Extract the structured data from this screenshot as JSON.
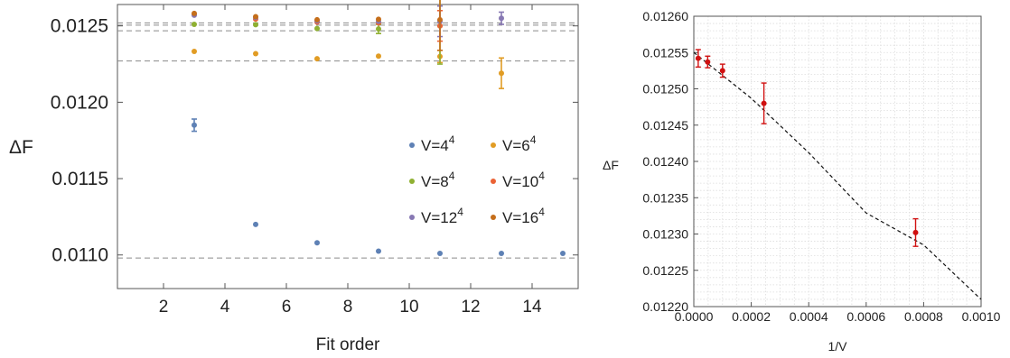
{
  "chart_data": [
    {
      "type": "scatter",
      "xlabel": "Fit order",
      "ylabel": "ΔF",
      "xlim": [
        0.5,
        15.5
      ],
      "ylim": [
        0.01078,
        0.01264
      ],
      "xticks": [
        "2",
        "4",
        "6",
        "8",
        "10",
        "12",
        "14"
      ],
      "yticks": [
        "0.0110",
        "0.0115",
        "0.0120",
        "0.0125"
      ],
      "grid": false,
      "legend_position": "right",
      "reference_lines": [
        0.01098,
        0.01227,
        0.012468,
        0.012505,
        0.01252
      ],
      "series": [
        {
          "name": "V=4",
          "exponent": "4",
          "color": "#5e81b5",
          "x": [
            3,
            5,
            7,
            9,
            11,
            13,
            15
          ],
          "y": [
            0.01185,
            0.0112,
            0.01108,
            0.011025,
            0.01101,
            0.01101,
            0.01101
          ],
          "err": [
            4e-05,
            1e-05,
            1e-05,
            1e-05,
            1e-05,
            1e-05,
            1e-05
          ]
        },
        {
          "name": "V=6",
          "exponent": "4",
          "color": "#e19c24",
          "x": [
            3,
            5,
            7,
            9,
            11,
            13
          ],
          "y": [
            0.012333,
            0.012318,
            0.012285,
            0.012302,
            0.0123,
            0.01219
          ],
          "err": [
            1e-05,
            1e-05,
            1e-05,
            1e-05,
            4e-05,
            0.0001
          ]
        },
        {
          "name": "V=8",
          "exponent": "4",
          "color": "#8fb032",
          "x": [
            3,
            5,
            7,
            9,
            11
          ],
          "y": [
            0.01251,
            0.012508,
            0.012483,
            0.01248,
            0.0125
          ],
          "err": [
            1e-05,
            1e-05,
            1e-05,
            3e-05,
            0.00025
          ]
        },
        {
          "name": "V=10",
          "exponent": "4",
          "color": "#eb6235",
          "x": [
            3,
            5,
            7,
            9,
            11
          ],
          "y": [
            0.012575,
            0.012545,
            0.012525,
            0.01252,
            0.0125
          ],
          "err": [
            1e-05,
            1e-05,
            1e-05,
            1e-05,
            0.0001
          ]
        },
        {
          "name": "V=12",
          "exponent": "4",
          "color": "#8778b3",
          "x": [
            3,
            5,
            7,
            9,
            11,
            13
          ],
          "y": [
            0.01257,
            0.012555,
            0.012533,
            0.01253,
            0.01253,
            0.01255
          ],
          "err": [
            1e-05,
            1e-05,
            1e-05,
            1e-05,
            0.0001,
            4e-05
          ]
        },
        {
          "name": "V=16",
          "exponent": "4",
          "color": "#c56e1a",
          "x": [
            3,
            5,
            7,
            9,
            11
          ],
          "y": [
            0.012582,
            0.01256,
            0.01254,
            0.012543,
            0.01254
          ],
          "err": [
            1e-05,
            1e-05,
            1e-05,
            1e-05,
            0.0002
          ]
        }
      ]
    },
    {
      "type": "scatter",
      "xlabel": "1/V",
      "ylabel": "ΔF",
      "xlim": [
        0,
        0.001
      ],
      "ylim": [
        0.0122,
        0.0126
      ],
      "xticks": [
        "0.0000",
        "0.0002",
        "0.0004",
        "0.0006",
        "0.0008",
        "0.0010"
      ],
      "yticks": [
        "0.01220",
        "0.01225",
        "0.01230",
        "0.01235",
        "0.01240",
        "0.01245",
        "0.01250",
        "0.01255",
        "0.01260"
      ],
      "grid": true,
      "color": "#d01010",
      "fit_line": {
        "x": [
          0,
          0.0002,
          0.0004,
          0.0006,
          0.0008,
          0.001
        ],
        "y": [
          0.01255,
          0.012487,
          0.012412,
          0.012329,
          0.012285,
          0.01221
        ]
      },
      "points": [
        {
          "x": 1.53e-05,
          "y": 0.012542,
          "err": 1.2e-05
        },
        {
          "x": 4.82e-05,
          "y": 0.012537,
          "err": 8e-06
        },
        {
          "x": 0.0001,
          "y": 0.012525,
          "err": 9e-06
        },
        {
          "x": 0.000244,
          "y": 0.01248,
          "err": 2.8e-05
        },
        {
          "x": 0.000772,
          "y": 0.012302,
          "err": 1.9e-05
        }
      ]
    }
  ]
}
